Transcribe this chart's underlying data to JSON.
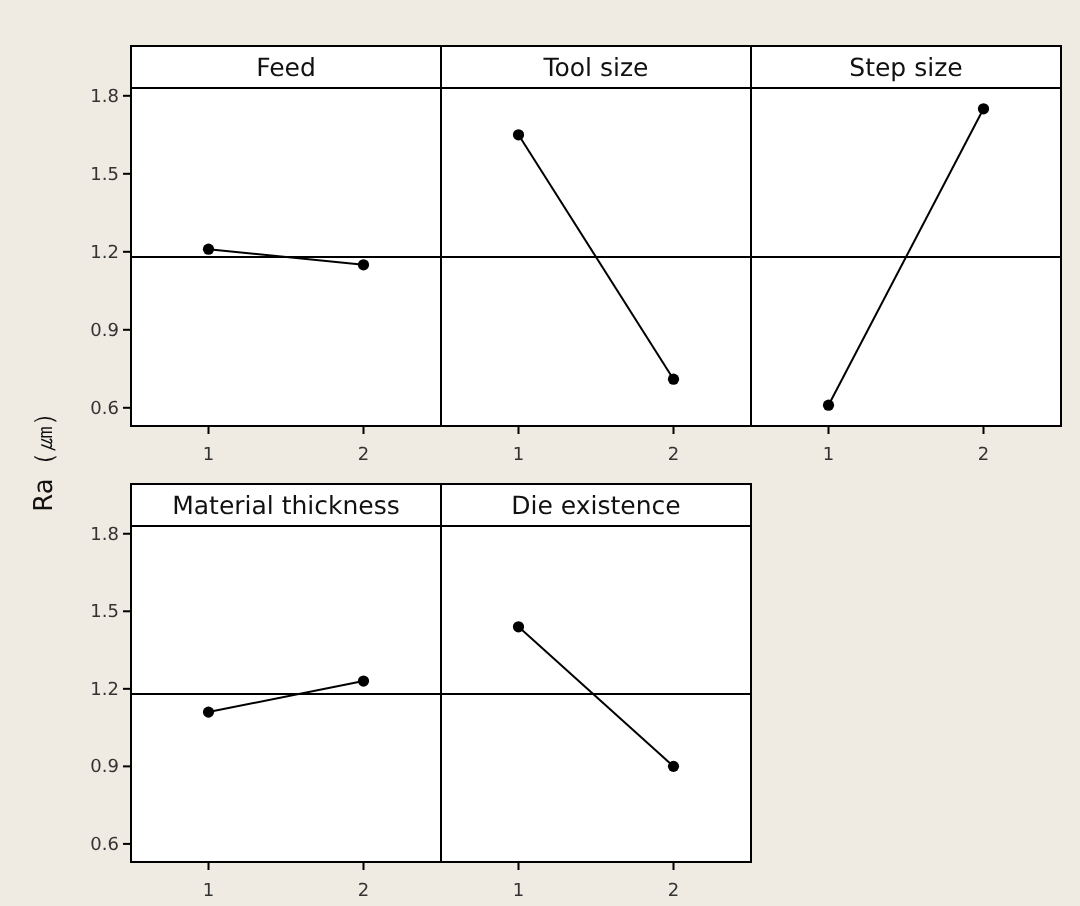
{
  "chart_data": [
    {
      "type": "line",
      "title": "Feed",
      "ylabel": "Ra（㎛）",
      "categories": [
        "1",
        "2"
      ],
      "values": [
        1.21,
        1.15
      ],
      "color": "#000000",
      "marker": "circle",
      "ylim": [
        0.53,
        1.83
      ],
      "yticks": [
        {
          "value": 0.6,
          "label": "0.6"
        },
        {
          "value": 0.9,
          "label": "0.9"
        },
        {
          "value": 1.2,
          "label": "1.2"
        },
        {
          "value": 1.5,
          "label": "1.5"
        },
        {
          "value": 1.8,
          "label": "1.8"
        }
      ],
      "ref_lines": [
        {
          "axis": "y",
          "value": 1.18,
          "color": "#000000"
        }
      ],
      "grid": false
    },
    {
      "type": "line",
      "title": "Tool size",
      "categories": [
        "1",
        "2"
      ],
      "values": [
        1.65,
        0.71
      ],
      "color": "#000000",
      "marker": "circle",
      "ylim": [
        0.53,
        1.83
      ],
      "tick_labels": "x",
      "ref_lines": [
        {
          "axis": "y",
          "value": 1.18,
          "color": "#000000"
        }
      ],
      "grid": false
    },
    {
      "type": "line",
      "title": "Step size",
      "categories": [
        "1",
        "2"
      ],
      "values": [
        0.61,
        1.75
      ],
      "color": "#000000",
      "marker": "circle",
      "ylim": [
        0.53,
        1.83
      ],
      "tick_labels": "x",
      "ref_lines": [
        {
          "axis": "y",
          "value": 1.18,
          "color": "#000000"
        }
      ],
      "grid": false
    },
    {
      "type": "line",
      "title": "Material thickness",
      "categories": [
        "1",
        "2"
      ],
      "values": [
        1.11,
        1.23
      ],
      "color": "#000000",
      "marker": "circle",
      "ylim": [
        0.53,
        1.83
      ],
      "yticks": [
        {
          "value": 0.6,
          "label": "0.6"
        },
        {
          "value": 0.9,
          "label": "0.9"
        },
        {
          "value": 1.2,
          "label": "1.2"
        },
        {
          "value": 1.5,
          "label": "1.5"
        },
        {
          "value": 1.8,
          "label": "1.8"
        }
      ],
      "ref_lines": [
        {
          "axis": "y",
          "value": 1.18,
          "color": "#000000"
        }
      ],
      "grid": false
    },
    {
      "type": "line",
      "title": "Die existence",
      "categories": [
        "1",
        "2"
      ],
      "values": [
        1.44,
        0.9
      ],
      "color": "#000000",
      "marker": "circle",
      "ylim": [
        0.53,
        1.83
      ],
      "tick_labels": "x",
      "ref_lines": [
        {
          "axis": "y",
          "value": 1.18,
          "color": "#000000"
        }
      ],
      "grid": false
    }
  ]
}
